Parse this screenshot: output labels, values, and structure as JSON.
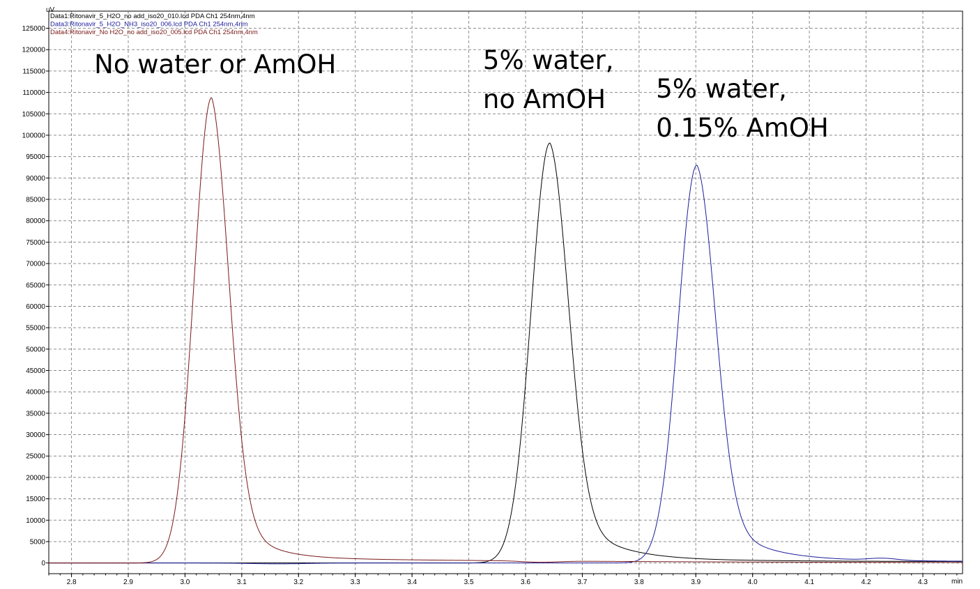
{
  "chart_data": {
    "type": "line",
    "y_unit": "uV",
    "x_unit": "min",
    "xlim": [
      2.76,
      4.37
    ],
    "ylim": [
      -2500,
      129000
    ],
    "grid": true,
    "legend_position": "top-left",
    "x_ticks": [
      "2.8",
      "2.9",
      "3.0",
      "3.1",
      "3.2",
      "3.3",
      "3.4",
      "3.5",
      "3.6",
      "3.7",
      "3.8",
      "3.9",
      "4.0",
      "4.1",
      "4.2",
      "4.3"
    ],
    "y_ticks": [
      "0",
      "5000",
      "10000",
      "15000",
      "20000",
      "25000",
      "30000",
      "35000",
      "40000",
      "45000",
      "50000",
      "55000",
      "60000",
      "65000",
      "70000",
      "75000",
      "80000",
      "85000",
      "90000",
      "95000",
      "100000",
      "105000",
      "110000",
      "115000",
      "120000",
      "125000"
    ],
    "legend": [
      {
        "text": "Data1:Ritonavir_5_H2O_no add_iso20_010.lcd PDA Ch1 254nm,4nm",
        "color": "#000000"
      },
      {
        "text": "Data3:Ritonavir_5_H2O_NH3_iso20_006.lcd PDA Ch1 254nm,4nm",
        "color": "#1c1c9c"
      },
      {
        "text": "Data4:Ritonavir_No H2O_no add_iso20_005.lcd PDA Ch1 254nm,4nm",
        "color": "#7a1818"
      }
    ],
    "annotations": [
      {
        "lines": [
          "No water or AmOH"
        ],
        "x": 2.84,
        "y": 114500
      },
      {
        "lines": [
          "5% water,",
          "no AmOH"
        ],
        "x": 3.525,
        "y": 115500
      },
      {
        "lines": [
          "5% water,",
          "0.15% AmOH"
        ],
        "x": 3.83,
        "y": 108800
      }
    ],
    "series": [
      {
        "color": "#000000",
        "peak": {
          "x": 3.643,
          "y": 98200,
          "left_width": 0.033,
          "tail": 0.07,
          "tail_frac": 0.18
        },
        "long_tail": {
          "y": 800,
          "decay": 1.2
        },
        "baseline": 0
      },
      {
        "color": "#1c1c9c",
        "peak": {
          "x": 3.902,
          "y": 93000,
          "left_width": 0.033,
          "tail": 0.07,
          "tail_frac": 0.18
        },
        "long_tail": {
          "y": 700,
          "decay": 1.2
        },
        "baseline": 0,
        "bumps": [
          {
            "x": 3.165,
            "y": -200,
            "w": 0.05
          },
          {
            "x": 4.23,
            "y": 500,
            "w": 0.025
          }
        ]
      },
      {
        "color": "#7a1818",
        "peak": {
          "x": 3.047,
          "y": 108800,
          "left_width": 0.031,
          "tail": 0.05,
          "tail_frac": 0.2
        },
        "long_tail": {
          "y": 1400,
          "decay": 1.9
        },
        "baseline": 0,
        "bumps": [
          {
            "x": 3.625,
            "y": -300,
            "w": 0.03
          }
        ]
      }
    ]
  }
}
